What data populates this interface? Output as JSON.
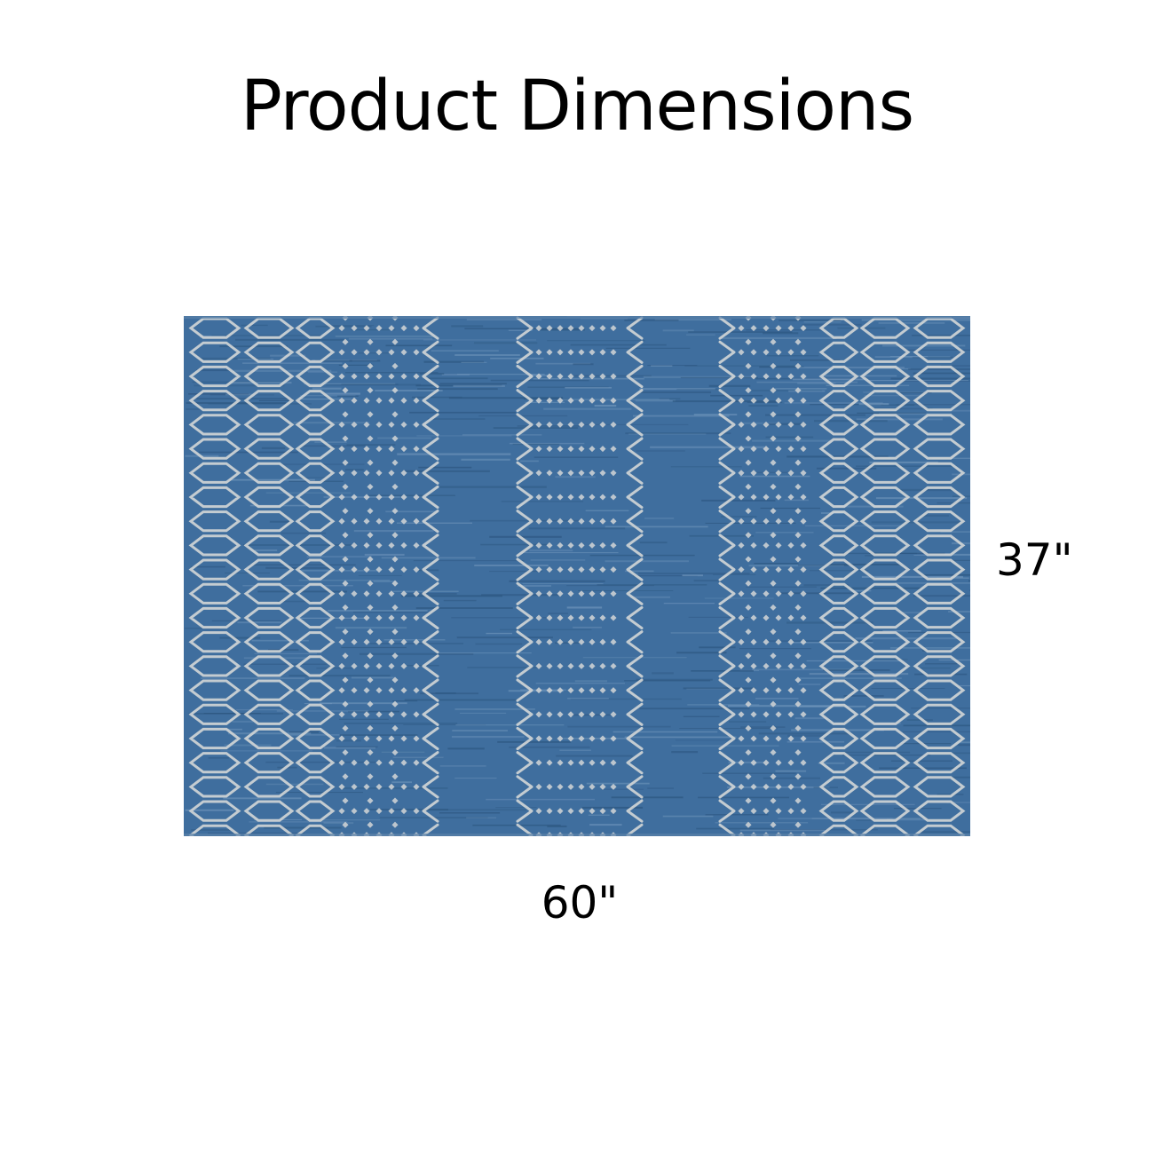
{
  "title": "Product Dimensions",
  "product": {
    "image": "blue-trellis-area-rug",
    "height_label": "37\"",
    "width_label": "60\"",
    "colors": {
      "background": "#3f6e9e",
      "pattern": "#d3d6d6"
    }
  }
}
